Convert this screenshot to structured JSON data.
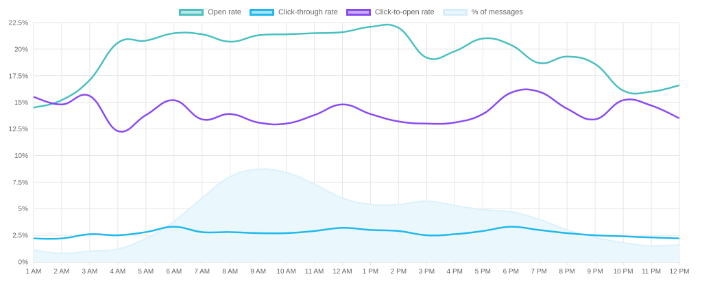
{
  "chart_data": {
    "type": "line",
    "categories": [
      "1 AM",
      "2 AM",
      "3 AM",
      "4 AM",
      "5 AM",
      "6 AM",
      "7 AM",
      "8 AM",
      "9 AM",
      "10 AM",
      "11 AM",
      "12 AM",
      "1 PM",
      "2 PM",
      "3 PM",
      "4 PM",
      "5 PM",
      "6 PM",
      "7 PM",
      "8 PM",
      "9 PM",
      "10 PM",
      "11 PM",
      "12 PM"
    ],
    "y_ticks": [
      "0%",
      "2.5%",
      "5%",
      "7.5%",
      "10%",
      "12.5%",
      "15%",
      "17.5%",
      "20%",
      "22.5%"
    ],
    "ylim": [
      0,
      22.5
    ],
    "grid": true,
    "legend_position": "top",
    "series": [
      {
        "name": "Open rate",
        "color": "#4bc0c0",
        "fill": "#b7e6e3",
        "style": "line",
        "values": [
          14.5,
          15.2,
          17.1,
          20.6,
          20.8,
          21.5,
          21.4,
          20.7,
          21.3,
          21.4,
          21.5,
          21.6,
          22.1,
          22.0,
          19.2,
          19.8,
          21.0,
          20.4,
          18.7,
          19.3,
          18.6,
          16.1,
          16.0,
          16.6
        ]
      },
      {
        "name": "Click-through rate",
        "color": "#1fb9ec",
        "fill": "#a9e1f7",
        "style": "line",
        "values": [
          2.2,
          2.2,
          2.6,
          2.5,
          2.8,
          3.3,
          2.8,
          2.8,
          2.7,
          2.7,
          2.9,
          3.2,
          3.0,
          2.9,
          2.5,
          2.6,
          2.9,
          3.3,
          3.0,
          2.7,
          2.5,
          2.4,
          2.3,
          2.2
        ]
      },
      {
        "name": "Click-to-open rate",
        "color": "#8a4af3",
        "fill": "#c8abf7",
        "style": "line",
        "values": [
          15.5,
          14.8,
          15.6,
          12.3,
          13.8,
          15.2,
          13.4,
          13.9,
          13.1,
          13.0,
          13.8,
          14.8,
          13.9,
          13.2,
          13.0,
          13.1,
          13.9,
          15.9,
          16.0,
          14.4,
          13.4,
          15.2,
          14.7,
          13.5
        ]
      },
      {
        "name": "% of messages",
        "color": "#dcf1fb",
        "fill": "#eaf7fd",
        "style": "area",
        "values": [
          1.1,
          0.8,
          1.0,
          1.2,
          2.2,
          3.8,
          6.0,
          8.0,
          8.7,
          8.4,
          7.3,
          6.0,
          5.4,
          5.4,
          5.7,
          5.3,
          4.9,
          4.7,
          4.0,
          3.0,
          2.3,
          1.8,
          1.5,
          1.6
        ]
      }
    ]
  }
}
